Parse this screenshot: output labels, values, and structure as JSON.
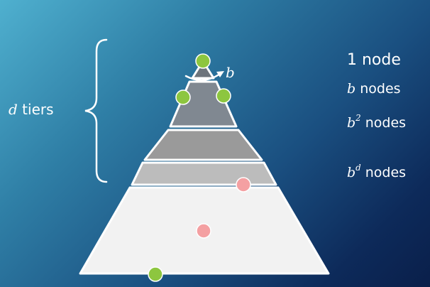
{
  "tiers_label": {
    "var": "d",
    "text": " tiers"
  },
  "branch_label": "b",
  "levels": [
    {
      "label": "1 node"
    },
    {
      "var": "b",
      "text": " nodes"
    },
    {
      "var": "b",
      "exp": "2",
      "text": " nodes"
    },
    {
      "var": "b",
      "exp": "d",
      "text": " nodes"
    }
  ],
  "colors": {
    "apex": "#6d747b",
    "tier1": "#808891",
    "tier2": "#9a9a9a",
    "tier3": "#bcbcbc",
    "base": "#f2f2f2",
    "outline": "#ffffff",
    "green_node": "#8dc63f",
    "pink_node": "#f4a0a2"
  }
}
